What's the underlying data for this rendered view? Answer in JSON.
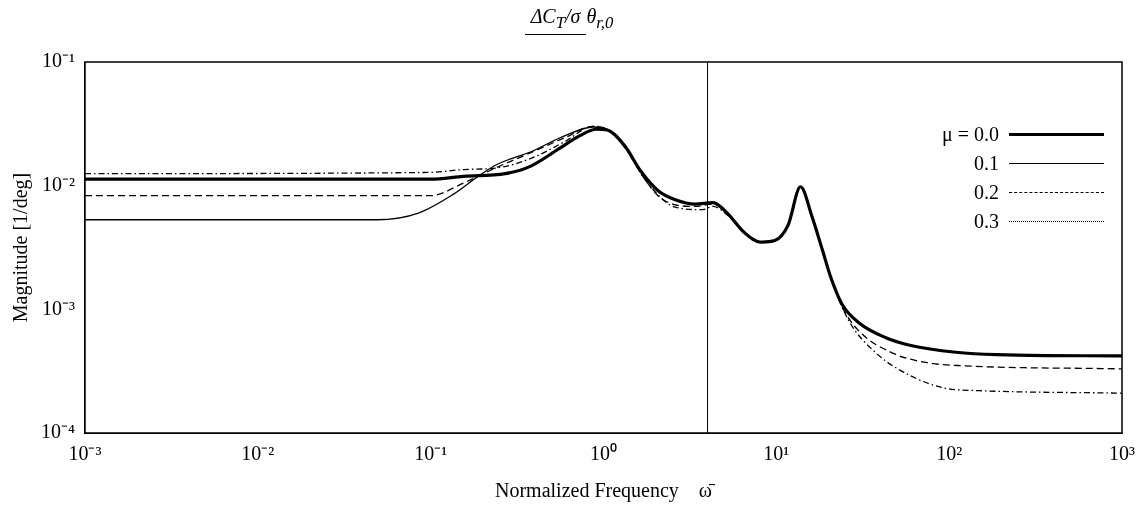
{
  "chart_data": {
    "type": "line",
    "title": "ΔC$_{T}$/σ",
    "subtitle": "θ$_{r,0}$",
    "xlabel": "Normalized Frequency    ω̄",
    "ylabel": "Magnitude [1/deg]",
    "log": "xy",
    "grid": false,
    "legend": "top right",
    "marker": "none",
    "xlim": [
      0.001,
      1000
    ],
    "ylim": [
      0.0001,
      0.1
    ],
    "xticks": [
      {
        "value": 0.001,
        "label": "10⁻³"
      },
      {
        "value": 0.01,
        "label": "10⁻²"
      },
      {
        "value": 0.1,
        "label": "10⁻¹"
      },
      {
        "value": 1,
        "label": "10⁰"
      },
      {
        "value": 10,
        "label": "10¹"
      },
      {
        "value": 100,
        "label": "10²"
      },
      {
        "value": 1000,
        "label": "10³"
      }
    ],
    "yticks": [
      {
        "value": 0.0001,
        "label": "10⁻⁴"
      },
      {
        "value": 0.001,
        "label": "10⁻³"
      },
      {
        "value": 0.01,
        "label": "10⁻²"
      },
      {
        "value": 0.1,
        "label": "10⁻¹"
      }
    ],
    "ref_lines": [
      {
        "axis": "x",
        "value": 4,
        "color": "#000000"
      }
    ],
    "series": [
      {
        "name": "μ = 0.0",
        "color": "#000000",
        "line_style": "solid",
        "x": [
          0.001,
          0.1,
          0.155,
          0.27,
          0.38,
          0.55,
          0.73,
          0.91,
          1.05,
          1.32,
          1.65,
          2.07,
          2.6,
          3.4,
          4.3,
          5.2,
          6.5,
          8.1,
          9.8,
          11.7,
          13.8,
          16.1,
          18.5,
          20.7,
          24,
          30,
          43,
          60,
          109,
          188,
          1000
        ],
        "values": [
          0.0113,
          0.0113,
          0.0119,
          0.0125,
          0.0144,
          0.0198,
          0.0254,
          0.0286,
          0.0282,
          0.0212,
          0.013,
          0.0091,
          0.0077,
          0.0071,
          0.0073,
          0.006,
          0.0042,
          0.0035,
          0.0036,
          0.0048,
          0.0098,
          0.0056,
          0.003,
          0.0018,
          0.0011,
          0.00078,
          0.00059,
          0.00051,
          0.00045,
          0.00043,
          0.00042
        ]
      },
      {
        "name": "0.1",
        "color": "#000000",
        "line_style": "solid",
        "x": [
          0.001,
          0.049,
          0.085,
          0.135,
          0.19,
          0.243,
          0.38,
          0.6,
          0.87,
          1.05,
          1.32,
          1.65,
          2.07,
          2.6,
          3.4,
          4.3,
          5.2,
          6.5,
          8.1,
          9.8,
          11.7,
          13.8,
          16.1,
          18.5,
          20.7,
          24,
          30,
          43,
          60,
          109,
          188,
          1000
        ],
        "values": [
          0.0053,
          0.0053,
          0.006,
          0.0085,
          0.012,
          0.0149,
          0.0188,
          0.0254,
          0.0298,
          0.0285,
          0.0212,
          0.013,
          0.0091,
          0.0077,
          0.0071,
          0.0073,
          0.006,
          0.0042,
          0.0035,
          0.0036,
          0.0048,
          0.0098,
          0.0056,
          0.003,
          0.0018,
          0.0011,
          0.00078,
          0.00059,
          0.00051,
          0.00045,
          0.00043,
          0.00042
        ]
      },
      {
        "name": "0.2",
        "color": "#000000",
        "line_style": "dashed",
        "x": [
          0.001,
          0.1,
          0.155,
          0.24,
          0.38,
          0.6,
          0.87,
          1.05,
          1.32,
          1.65,
          2.07,
          2.6,
          3.4,
          4.3,
          5.2,
          6.5,
          8.1,
          9.8,
          11.7,
          13.8,
          16.1,
          18.5,
          20.7,
          24,
          30,
          47.6,
          75,
          119,
          1000
        ],
        "values": [
          0.0083,
          0.0083,
          0.0105,
          0.014,
          0.0185,
          0.0245,
          0.0302,
          0.0285,
          0.0212,
          0.0125,
          0.0083,
          0.007,
          0.0068,
          0.0071,
          0.006,
          0.0042,
          0.0035,
          0.0036,
          0.0048,
          0.0098,
          0.0056,
          0.003,
          0.0018,
          0.00105,
          0.00067,
          0.00044,
          0.00037,
          0.00035,
          0.00033
        ]
      },
      {
        "name": "0.3",
        "color": "#000000",
        "line_style": "dotted",
        "x": [
          0.001,
          0.1,
          0.155,
          0.24,
          0.38,
          0.6,
          0.87,
          1.05,
          1.32,
          1.8,
          2.6,
          3.75,
          4.3,
          5.2,
          6.5,
          8.1,
          9.8,
          11.7,
          13.8,
          16.1,
          18.5,
          20.7,
          26,
          38,
          60,
          95,
          150,
          1000
        ],
        "values": [
          0.0125,
          0.0128,
          0.0135,
          0.0139,
          0.0166,
          0.0228,
          0.0302,
          0.0285,
          0.0205,
          0.0105,
          0.0067,
          0.0064,
          0.0068,
          0.0058,
          0.0042,
          0.0035,
          0.0036,
          0.0048,
          0.0098,
          0.0056,
          0.003,
          0.0018,
          0.00083,
          0.00044,
          0.00029,
          0.00023,
          0.00022,
          0.00021
        ]
      }
    ]
  }
}
